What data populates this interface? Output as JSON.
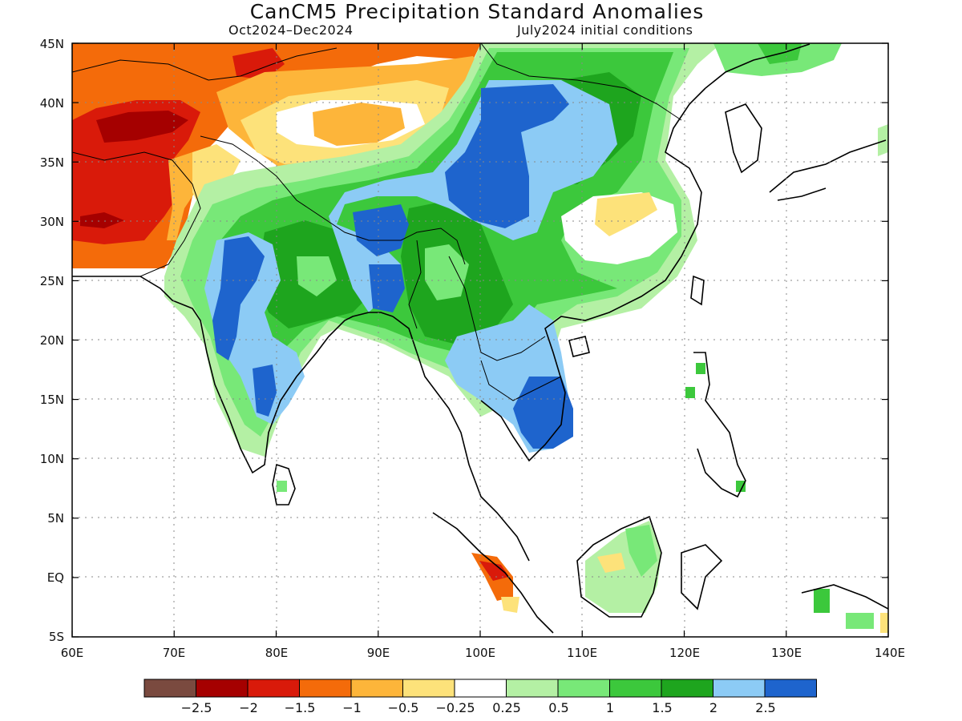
{
  "title": "CanCM5 Precipitation Standard Anomalies",
  "subtitle_left": "Oct2024–Dec2024",
  "subtitle_right": "July2024 initial conditions",
  "lon_labels": [
    "60E",
    "70E",
    "80E",
    "90E",
    "100E",
    "110E",
    "120E",
    "130E",
    "140E"
  ],
  "lat_labels": [
    "45N",
    "40N",
    "35N",
    "30N",
    "25N",
    "20N",
    "15N",
    "10N",
    "5N",
    "EQ",
    "5S"
  ],
  "colorbar": {
    "colors": [
      "#7a4a3f",
      "#a50000",
      "#d91a0a",
      "#f46b0a",
      "#fdb53a",
      "#fde27a",
      "#ffffff",
      "#b4f0a4",
      "#78e878",
      "#3cc83c",
      "#1ea51e",
      "#8ccbf5",
      "#1e64cd"
    ],
    "labels": [
      "−2.5",
      "−2",
      "−1.5",
      "−1",
      "−0.5",
      "−0.25",
      "0.25",
      "0.5",
      "1",
      "1.5",
      "2",
      "2.5"
    ]
  },
  "chart_data": {
    "type": "heatmap",
    "title": "CanCM5 Precipitation Standard Anomalies",
    "lon_range": [
      60,
      140
    ],
    "lat_range": [
      -5,
      45
    ],
    "notes": "Positive anomalies over India, Bangladesh, SE China, Indochina, Tibetan Plateau; negative anomalies over Iran/Afghanistan/Pakistan and northern China/Mongolia."
  }
}
